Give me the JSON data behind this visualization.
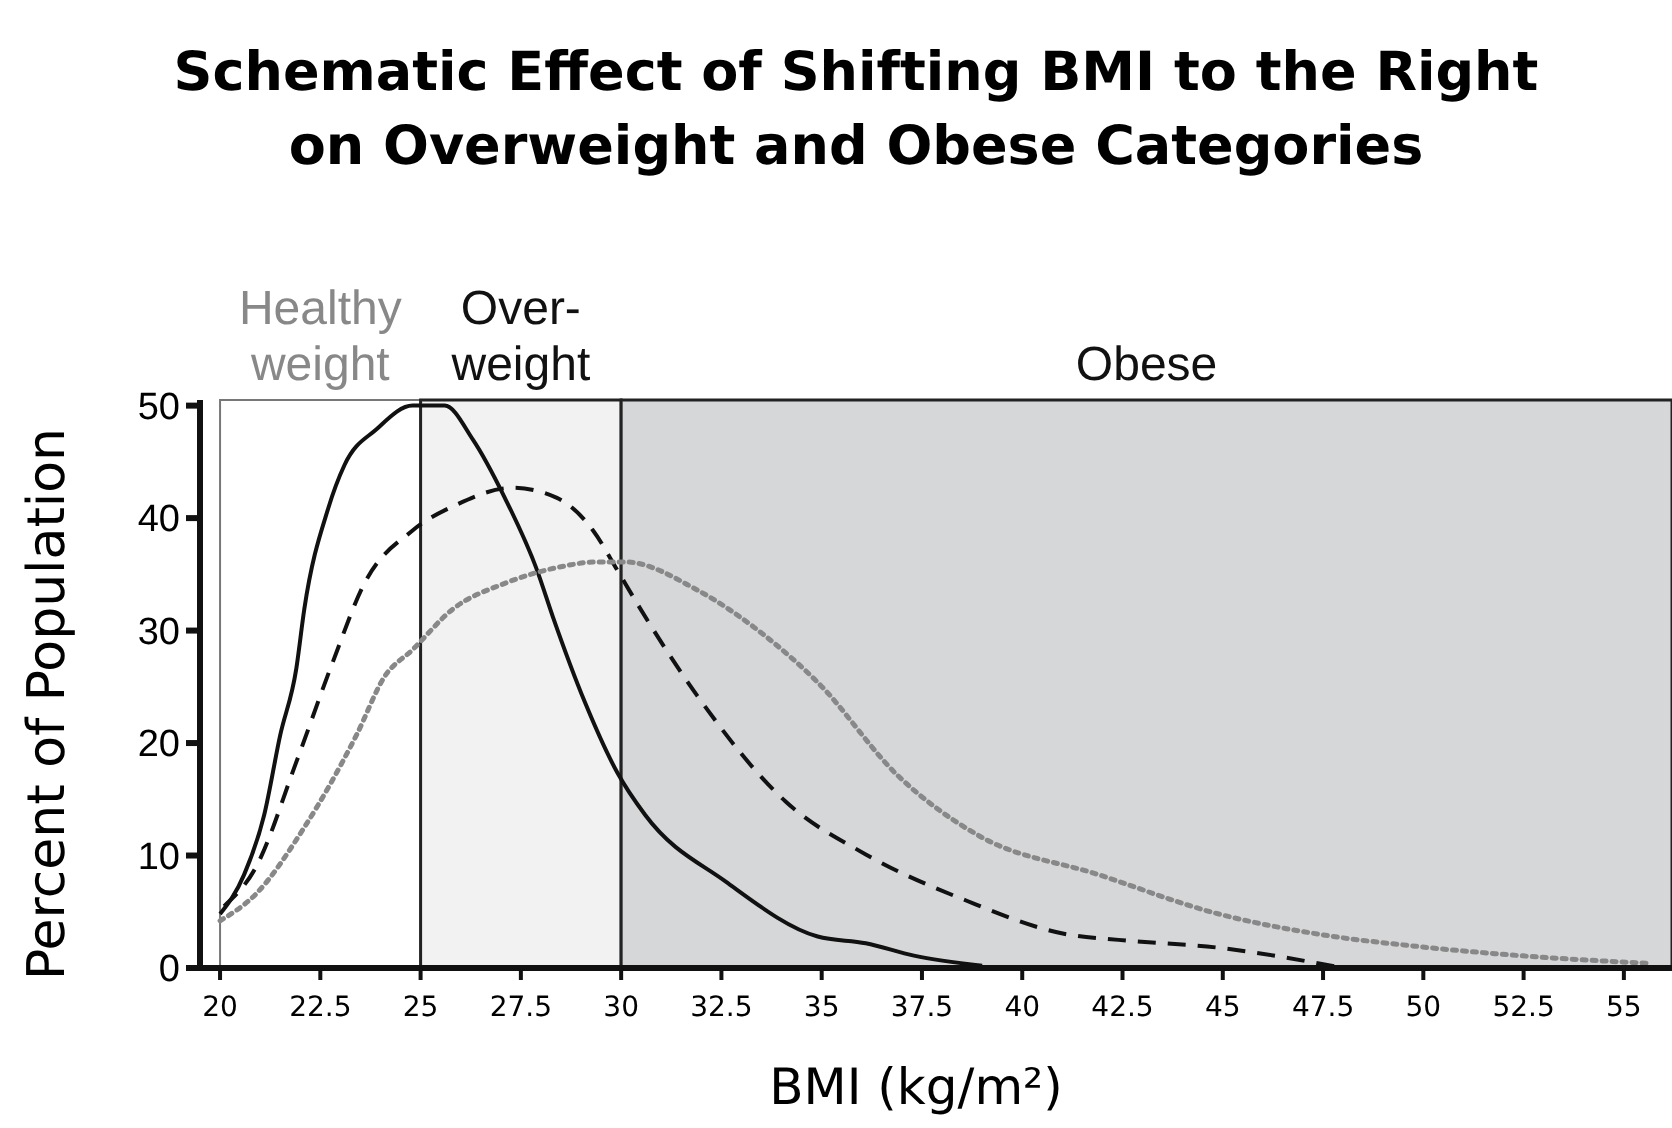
{
  "chart_data": {
    "type": "line",
    "title": "Schematic Effect of Shifting BMI to the Right\non Overweight and Obese Categories",
    "xlabel": "BMI (kg/m²)",
    "ylabel": "Percent of Population",
    "xlim": [
      19.5,
      56.2
    ],
    "xticks": [
      20,
      22.5,
      25,
      27.5,
      30,
      32.5,
      35,
      37.5,
      40,
      42.5,
      45,
      47.5,
      50,
      52.5,
      55
    ],
    "ylim": [
      0,
      50.5
    ],
    "yticks": [
      0,
      10,
      20,
      30,
      40,
      50
    ],
    "grid": false,
    "marker": "none",
    "bands": [
      {
        "axis": "x",
        "from": 20,
        "to": 25,
        "label": "Healthy\nweight",
        "color": "#ffffff"
      },
      {
        "axis": "x",
        "from": 25,
        "to": 30,
        "label": "Over-\nweight",
        "color": "#f2f2f2"
      },
      {
        "axis": "x",
        "from": 30,
        "to": 56.2,
        "label": "Obese",
        "color": "#d6d7d9"
      }
    ],
    "series": [
      {
        "color": "#111111",
        "line_style": "solid",
        "x": [
          20,
          20.6,
          21.1,
          21.5,
          21.9,
          22.1,
          22.7,
          23.1,
          23.9,
          24.8,
          25.6,
          26.3,
          27.1,
          27.9,
          28.3,
          29.1,
          29.9,
          30.6,
          32.6,
          34.9,
          36.1,
          37.3,
          39
        ],
        "values": [
          4.8,
          8.3,
          13.6,
          20.7,
          26.6,
          31.9,
          40.9,
          44.7,
          47.9,
          50,
          50,
          47,
          41.8,
          35.4,
          31.2,
          23.6,
          17.4,
          13.6,
          7.7,
          2.8,
          2.2,
          1.1,
          0.2
        ]
      },
      {
        "color": "#111111",
        "line_style": "dashed",
        "x": [
          20.1,
          20.9,
          21.9,
          22.8,
          23.6,
          24.8,
          25.9,
          27.3,
          28.4,
          29.3,
          29.9,
          30.4,
          31.9,
          34.1,
          36.1,
          38.6,
          41.1,
          42.4,
          44.9,
          47.4,
          48
        ],
        "values": [
          5.5,
          9,
          18.3,
          27.1,
          34.2,
          38.9,
          41.2,
          42.7,
          41.8,
          38.9,
          35.4,
          32.4,
          24.2,
          14.8,
          10.1,
          6,
          3,
          2.5,
          1.8,
          0.4,
          0
        ]
      },
      {
        "color": "#888888",
        "line_style": "dotted",
        "x": [
          20,
          20.9,
          22.1,
          23.4,
          24.1,
          24.8,
          25.8,
          27.1,
          28.4,
          29.4,
          30.1,
          31.9,
          33.6,
          34.9,
          36.9,
          38.9,
          41.9,
          44.9,
          47.4,
          49.9,
          52.4,
          55.7
        ],
        "values": [
          4.2,
          6.6,
          12.5,
          20.7,
          25.9,
          28.3,
          31.9,
          34.2,
          35.6,
          36.1,
          36.1,
          33.6,
          29.5,
          25.4,
          17.1,
          11.8,
          8.3,
          4.8,
          3,
          1.9,
          1.1,
          0.4
        ]
      }
    ]
  }
}
